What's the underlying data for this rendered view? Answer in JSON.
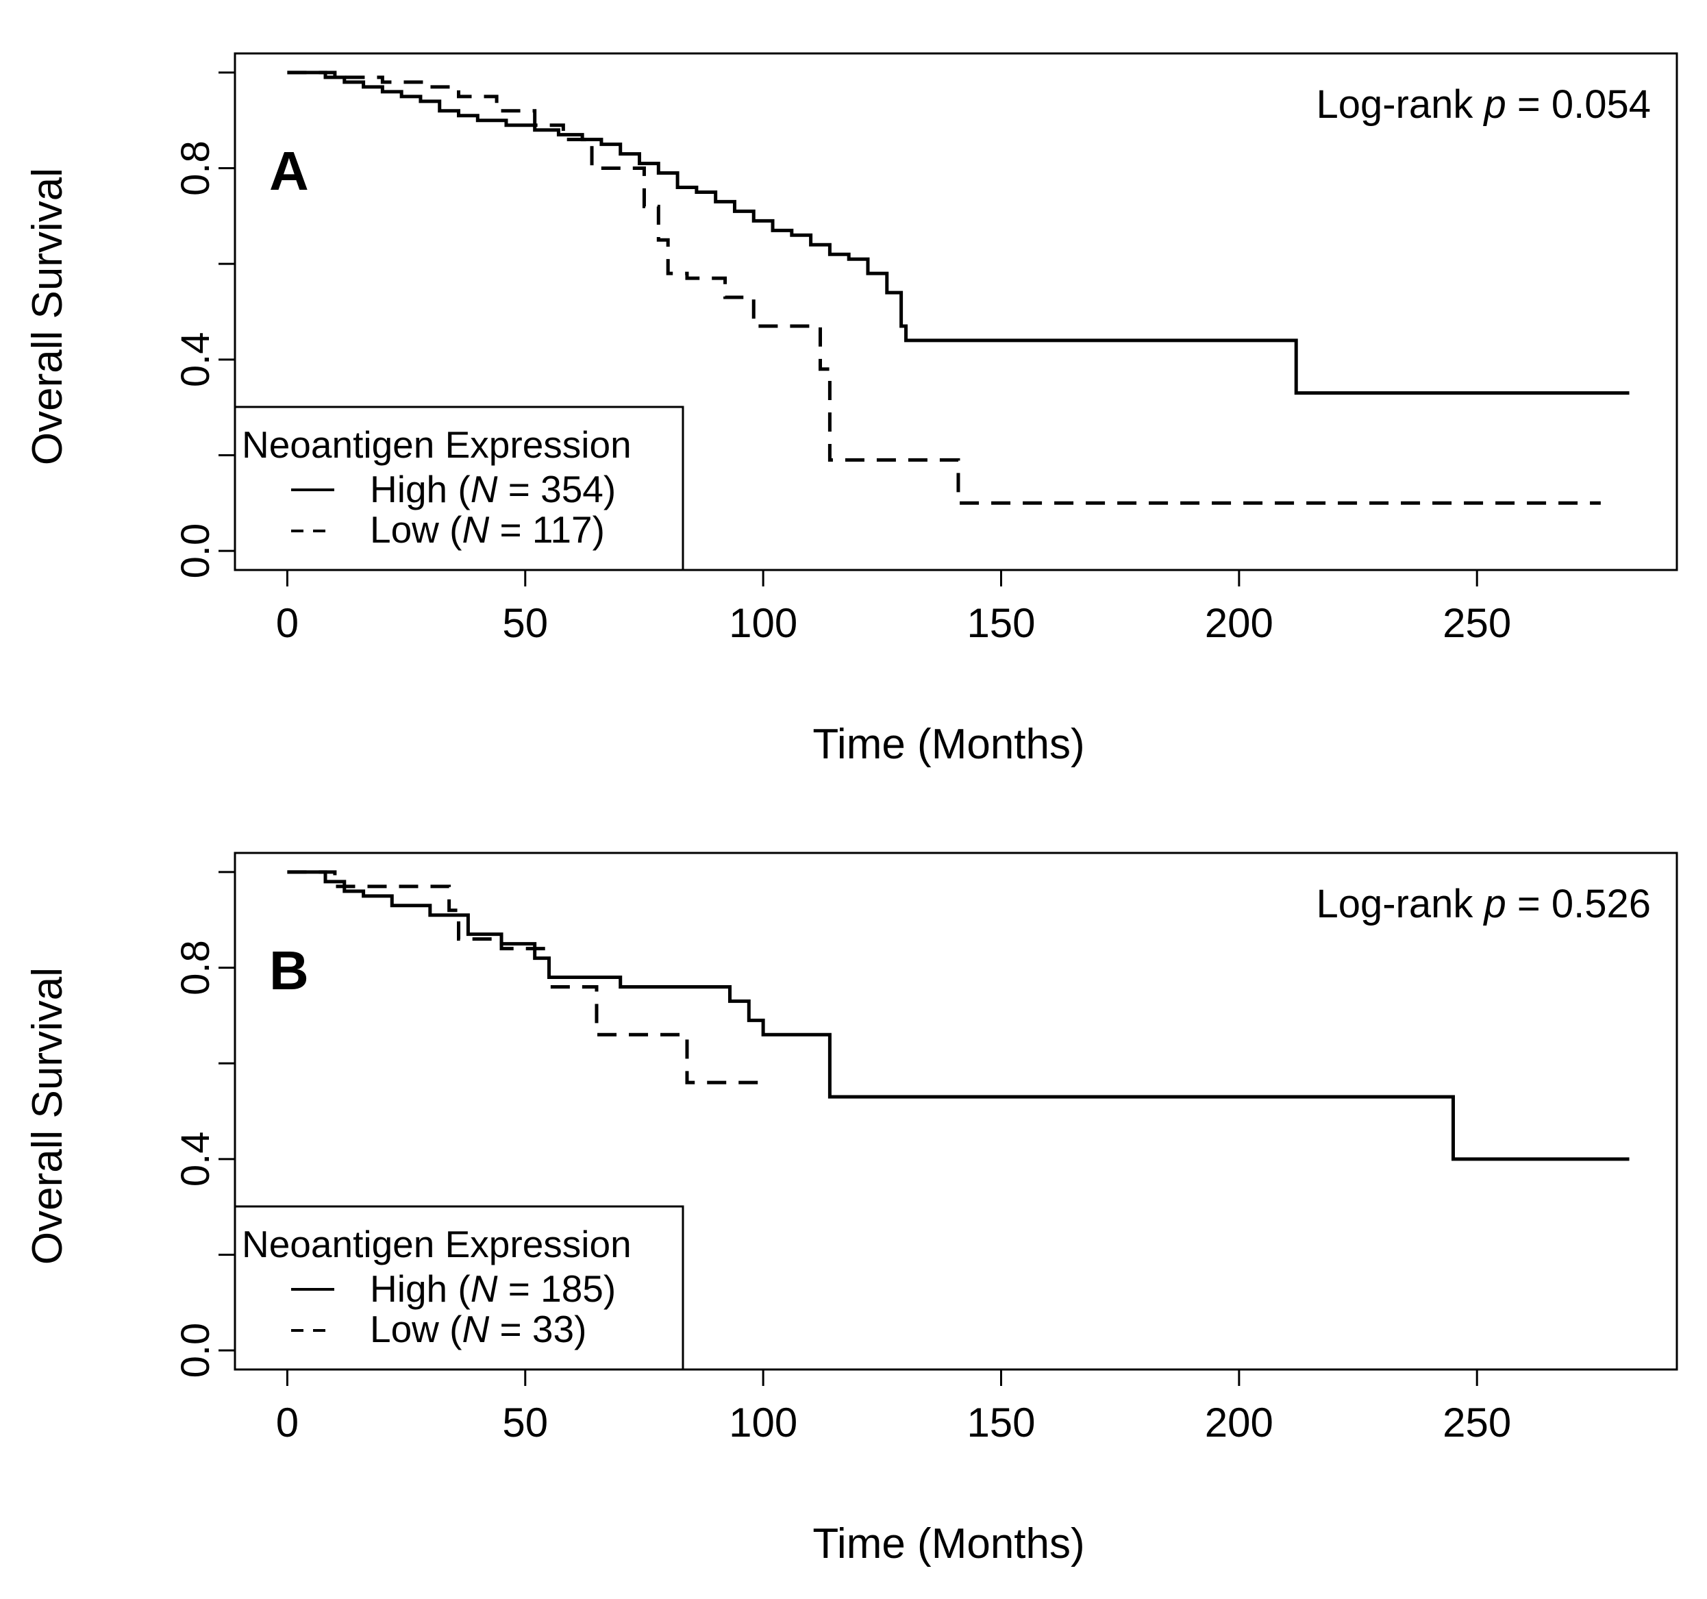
{
  "chart_data": [
    {
      "type": "line",
      "panel_label": "A",
      "annotation_prefix": "Log-rank ",
      "annotation_p": "p",
      "annotation_suffix": " = 0.054",
      "xlabel": "Time (Months)",
      "ylabel": "Overall Survival",
      "xlim": [
        -11,
        292
      ],
      "ylim": [
        -0.04,
        1.04
      ],
      "x_ticks": [
        0,
        50,
        100,
        150,
        200,
        250
      ],
      "x_tick_labels": [
        "0",
        "50",
        "100",
        "150",
        "200",
        "250"
      ],
      "y_ticks": [
        0,
        0.2,
        0.4,
        0.6,
        0.8,
        1.0
      ],
      "y_tick_labels": [
        "0.0",
        "0.4",
        "0.8"
      ],
      "y_tick_label_values": [
        0,
        0.4,
        0.8
      ],
      "legend": {
        "title": "Neoantigen Expression",
        "entries": [
          {
            "prefix": "High (",
            "n_symbol": "N",
            "suffix": " = 354)",
            "style": "solid"
          },
          {
            "prefix": "Low (",
            "n_symbol": "N",
            "suffix": " = 117)",
            "style": "dashed"
          }
        ]
      },
      "series": [
        {
          "name": "High (N = 354)",
          "style": "solid",
          "x": [
            0,
            8,
            12,
            16,
            20,
            24,
            28,
            32,
            36,
            40,
            46,
            52,
            57,
            62,
            66,
            70,
            74,
            78,
            82,
            86,
            90,
            94,
            98,
            102,
            106,
            110,
            114,
            118,
            122,
            126,
            129,
            130,
            140,
            150,
            200,
            212,
            230,
            282
          ],
          "y": [
            1.0,
            0.99,
            0.98,
            0.97,
            0.96,
            0.95,
            0.94,
            0.92,
            0.91,
            0.9,
            0.89,
            0.88,
            0.87,
            0.86,
            0.85,
            0.83,
            0.81,
            0.79,
            0.76,
            0.75,
            0.73,
            0.71,
            0.69,
            0.67,
            0.66,
            0.64,
            0.62,
            0.61,
            0.58,
            0.54,
            0.47,
            0.44,
            0.44,
            0.44,
            0.44,
            0.33,
            0.33,
            0.33
          ]
        },
        {
          "name": "Low (N = 117)",
          "style": "dashed",
          "x": [
            0,
            10,
            20,
            30,
            36,
            44,
            52,
            58,
            64,
            70,
            75,
            78,
            80,
            84,
            92,
            98,
            104,
            112,
            114,
            130,
            141,
            150,
            200,
            276
          ],
          "y": [
            1.0,
            0.99,
            0.98,
            0.97,
            0.95,
            0.92,
            0.89,
            0.86,
            0.8,
            0.8,
            0.72,
            0.65,
            0.58,
            0.57,
            0.53,
            0.47,
            0.47,
            0.38,
            0.19,
            0.19,
            0.1,
            0.1,
            0.1,
            0.1
          ]
        }
      ]
    },
    {
      "type": "line",
      "panel_label": "B",
      "annotation_prefix": "Log-rank ",
      "annotation_p": "p",
      "annotation_suffix": " = 0.526",
      "xlabel": "Time (Months)",
      "ylabel": "Overall Survival",
      "xlim": [
        -11,
        292
      ],
      "ylim": [
        -0.04,
        1.04
      ],
      "x_ticks": [
        0,
        50,
        100,
        150,
        200,
        250
      ],
      "x_tick_labels": [
        "0",
        "50",
        "100",
        "150",
        "200",
        "250"
      ],
      "y_ticks": [
        0,
        0.2,
        0.4,
        0.6,
        0.8,
        1.0
      ],
      "y_tick_labels": [
        "0.0",
        "0.4",
        "0.8"
      ],
      "y_tick_label_values": [
        0,
        0.4,
        0.8
      ],
      "legend": {
        "title": "Neoantigen Expression",
        "entries": [
          {
            "prefix": "High (",
            "n_symbol": "N",
            "suffix": " = 185)",
            "style": "solid"
          },
          {
            "prefix": "Low (",
            "n_symbol": "N",
            "suffix": " = 33)",
            "style": "dashed"
          }
        ]
      },
      "series": [
        {
          "name": "High (N = 185)",
          "style": "solid",
          "x": [
            0,
            8,
            12,
            16,
            22,
            30,
            38,
            45,
            52,
            55,
            70,
            93,
            97,
            100,
            114,
            150,
            200,
            245,
            282
          ],
          "y": [
            1.0,
            0.98,
            0.96,
            0.95,
            0.93,
            0.91,
            0.87,
            0.85,
            0.82,
            0.78,
            0.76,
            0.73,
            0.69,
            0.66,
            0.53,
            0.53,
            0.53,
            0.4,
            0.4
          ],
          "last_drop_y": 0.4
        },
        {
          "name": "Low (N = 33)",
          "style": "dashed",
          "x": [
            0,
            10,
            34,
            36,
            45,
            55,
            65,
            84,
            99
          ],
          "y": [
            1.0,
            0.97,
            0.92,
            0.86,
            0.84,
            0.76,
            0.66,
            0.56,
            0.56
          ]
        }
      ]
    }
  ]
}
